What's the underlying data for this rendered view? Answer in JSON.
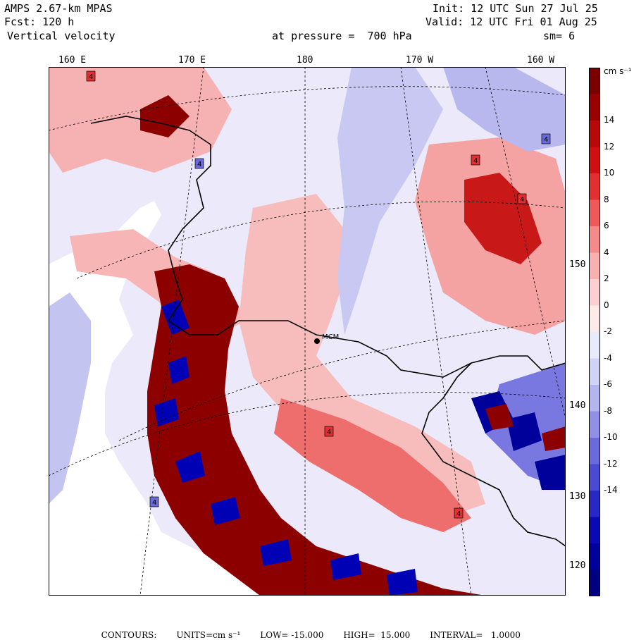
{
  "header": {
    "model": "AMPS 2.67-km MPAS",
    "fcst": "Fcst: 120 h",
    "field": "Vertical velocity",
    "level": "at pressure =  700 hPa",
    "init": "Init: 12 UTC Sun 27 Jul 25",
    "valid": "Valid: 12 UTC Fri 01 Aug 25",
    "smooth": "sm= 6"
  },
  "map": {
    "lon_labels": [
      "160 E",
      "170 E",
      "180",
      "170 W",
      "160 W"
    ],
    "lat_labels": [
      "150 W",
      "140 W",
      "130 W",
      "120 W"
    ],
    "station": "MCM",
    "highlow_marker": "4"
  },
  "colorbar": {
    "unit": "cm s⁻¹",
    "labels": [
      "14",
      "12",
      "10",
      "8",
      "6",
      "4",
      "2",
      "0",
      "-2",
      "-4",
      "-6",
      "-8",
      "-10",
      "-12",
      "-14"
    ],
    "colors": [
      "#7a0000",
      "#9a0000",
      "#b80808",
      "#d01010",
      "#e23030",
      "#ee5a5a",
      "#f58a8a",
      "#f8b0b0",
      "#fbd0d0",
      "#fdeaea",
      "#eaeafd",
      "#d2d2f7",
      "#b4b4ef",
      "#9090e6",
      "#6a6adc",
      "#4a4ad2",
      "#2828c4",
      "#0a0ab4",
      "#00009a",
      "#000080"
    ]
  },
  "footer": {
    "contours": "CONTOURS:",
    "units": "UNITS=cm s⁻¹",
    "low": "LOW= -15.000",
    "high": "HIGH=  15.000",
    "interval": "INTERVAL=   1.0000"
  }
}
